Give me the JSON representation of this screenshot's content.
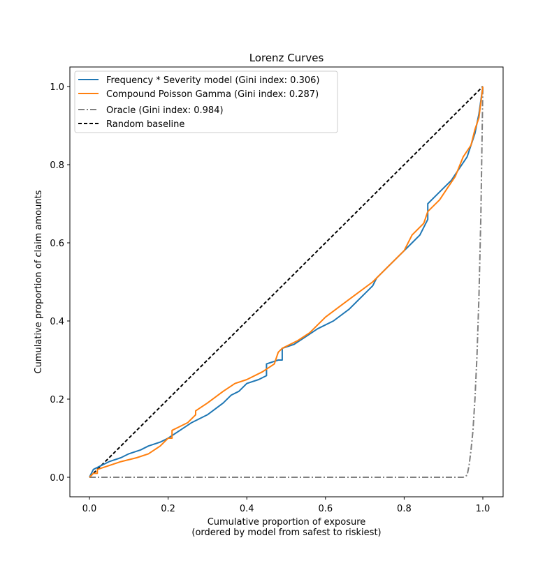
{
  "chart_data": {
    "type": "line",
    "title": "Lorenz Curves",
    "xlabel": "Cumulative proportion of exposure",
    "xlabel_line2": "(ordered by model from safest to riskiest)",
    "ylabel": "Cumulative proportion of claim amounts",
    "xlim": [
      -0.05,
      1.05
    ],
    "ylim": [
      -0.05,
      1.05
    ],
    "xticks": [
      "0.0",
      "0.2",
      "0.4",
      "0.6",
      "0.8",
      "1.0"
    ],
    "yticks": [
      "0.0",
      "0.2",
      "0.4",
      "0.6",
      "0.8",
      "1.0"
    ],
    "grid": false,
    "legend_position": "upper left",
    "series": [
      {
        "name": "Frequency * Severity model (Gini index: 0.306)",
        "color": "#1f77b4",
        "style": "solid",
        "x": [
          0.0,
          0.01,
          0.03,
          0.05,
          0.08,
          0.1,
          0.13,
          0.15,
          0.18,
          0.2,
          0.23,
          0.26,
          0.3,
          0.34,
          0.36,
          0.38,
          0.4,
          0.43,
          0.45,
          0.45,
          0.48,
          0.49,
          0.49,
          0.52,
          0.55,
          0.58,
          0.62,
          0.66,
          0.68,
          0.7,
          0.72,
          0.73,
          0.76,
          0.79,
          0.82,
          0.84,
          0.86,
          0.86,
          0.88,
          0.9,
          0.92,
          0.94,
          0.96,
          0.97,
          0.98,
          0.99,
          1.0
        ],
        "y": [
          0.0,
          0.02,
          0.03,
          0.04,
          0.05,
          0.06,
          0.07,
          0.08,
          0.09,
          0.1,
          0.12,
          0.14,
          0.16,
          0.19,
          0.21,
          0.22,
          0.24,
          0.25,
          0.26,
          0.29,
          0.3,
          0.3,
          0.33,
          0.34,
          0.36,
          0.38,
          0.4,
          0.43,
          0.45,
          0.47,
          0.49,
          0.51,
          0.54,
          0.57,
          0.6,
          0.62,
          0.66,
          0.7,
          0.72,
          0.74,
          0.76,
          0.79,
          0.82,
          0.85,
          0.88,
          0.93,
          1.0
        ]
      },
      {
        "name": "Compound Poisson Gamma (Gini index: 0.287)",
        "color": "#ff7f0e",
        "style": "solid",
        "x": [
          0.0,
          0.01,
          0.02,
          0.02,
          0.05,
          0.08,
          0.12,
          0.15,
          0.18,
          0.2,
          0.21,
          0.21,
          0.25,
          0.27,
          0.27,
          0.3,
          0.34,
          0.37,
          0.4,
          0.44,
          0.47,
          0.48,
          0.49,
          0.53,
          0.56,
          0.6,
          0.64,
          0.68,
          0.72,
          0.74,
          0.78,
          0.8,
          0.82,
          0.85,
          0.86,
          0.89,
          0.91,
          0.93,
          0.95,
          0.97,
          0.98,
          0.99,
          1.0
        ],
        "y": [
          0.0,
          0.01,
          0.01,
          0.02,
          0.03,
          0.04,
          0.05,
          0.06,
          0.08,
          0.1,
          0.1,
          0.12,
          0.14,
          0.16,
          0.17,
          0.19,
          0.22,
          0.24,
          0.25,
          0.27,
          0.29,
          0.32,
          0.33,
          0.35,
          0.37,
          0.41,
          0.44,
          0.47,
          0.5,
          0.52,
          0.56,
          0.58,
          0.62,
          0.65,
          0.68,
          0.71,
          0.74,
          0.77,
          0.82,
          0.85,
          0.89,
          0.92,
          1.0
        ]
      },
      {
        "name": "Oracle (Gini index: 0.984)",
        "color": "#808080",
        "style": "dashdot",
        "x": [
          0.0,
          0.95,
          0.96,
          0.965,
          0.97,
          0.975,
          0.98,
          0.985,
          0.99,
          0.995,
          1.0
        ],
        "y": [
          0.0,
          0.0,
          0.005,
          0.03,
          0.07,
          0.12,
          0.2,
          0.31,
          0.46,
          0.67,
          1.0
        ]
      },
      {
        "name": "Random baseline",
        "color": "#000000",
        "style": "dashed",
        "x": [
          0.0,
          1.0
        ],
        "y": [
          0.0,
          1.0
        ]
      }
    ]
  }
}
